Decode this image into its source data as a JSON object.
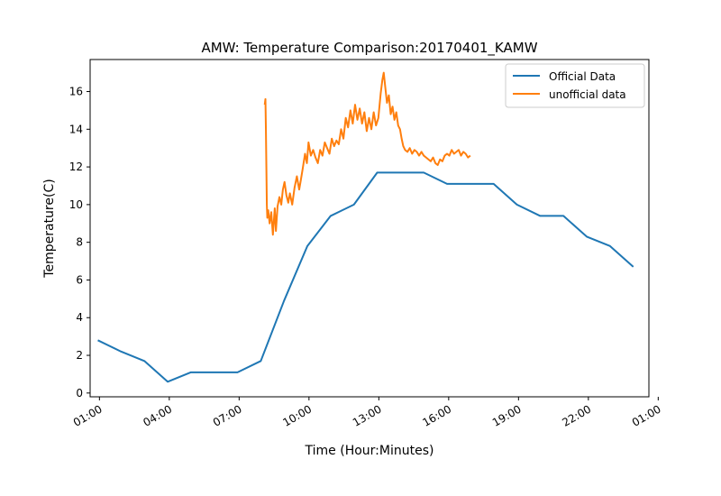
{
  "chart_data": {
    "type": "line",
    "title": "AMW: Temperature Comparison:20170401_KAMW",
    "xlabel": "Time (Hour:Minutes)",
    "ylabel": "Temperature(C)",
    "x_unit": "hours since 00:00",
    "xlim": [
      0.57,
      24.57
    ],
    "ylim": [
      -0.2,
      17.7
    ],
    "x_ticks": [
      {
        "x": 0.97,
        "label": "01:00"
      },
      {
        "x": 3.97,
        "label": "04:00"
      },
      {
        "x": 6.97,
        "label": "07:00"
      },
      {
        "x": 9.97,
        "label": "10:00"
      },
      {
        "x": 12.97,
        "label": "13:00"
      },
      {
        "x": 15.97,
        "label": "16:00"
      },
      {
        "x": 18.97,
        "label": "19:00"
      },
      {
        "x": 21.97,
        "label": "22:00"
      },
      {
        "x": 24.97,
        "label": "01:00"
      }
    ],
    "y_ticks": [
      0,
      2,
      4,
      6,
      8,
      10,
      12,
      14,
      16
    ],
    "legend_position": "top-right",
    "series": [
      {
        "name": "Official Data",
        "color": "#1f77b4",
        "points": [
          [
            0.9,
            2.8
          ],
          [
            1.9,
            2.2
          ],
          [
            2.9,
            1.7
          ],
          [
            3.9,
            0.6
          ],
          [
            4.9,
            1.1
          ],
          [
            5.9,
            1.1
          ],
          [
            6.9,
            1.1
          ],
          [
            7.9,
            1.7
          ],
          [
            8.9,
            4.9
          ],
          [
            9.9,
            7.8
          ],
          [
            10.9,
            9.4
          ],
          [
            11.9,
            10.0
          ],
          [
            12.9,
            11.7
          ],
          [
            13.9,
            11.7
          ],
          [
            14.9,
            11.7
          ],
          [
            15.9,
            11.1
          ],
          [
            16.9,
            11.1
          ],
          [
            17.9,
            11.1
          ],
          [
            18.9,
            10.0
          ],
          [
            19.9,
            9.4
          ],
          [
            20.9,
            9.4
          ],
          [
            21.9,
            8.3
          ],
          [
            22.9,
            7.8
          ],
          [
            23.9,
            6.7
          ]
        ]
      },
      {
        "name": "unofficial data",
        "color": "#ff7f0e",
        "points": [
          [
            8.07,
            15.3
          ],
          [
            8.1,
            15.6
          ],
          [
            8.12,
            14.0
          ],
          [
            8.14,
            12.0
          ],
          [
            8.16,
            10.0
          ],
          [
            8.18,
            9.3
          ],
          [
            8.22,
            9.7
          ],
          [
            8.28,
            9.0
          ],
          [
            8.35,
            9.6
          ],
          [
            8.42,
            8.4
          ],
          [
            8.5,
            9.8
          ],
          [
            8.55,
            8.6
          ],
          [
            8.62,
            9.9
          ],
          [
            8.7,
            10.4
          ],
          [
            8.78,
            10.0
          ],
          [
            8.85,
            10.8
          ],
          [
            8.92,
            11.2
          ],
          [
            9.0,
            10.5
          ],
          [
            9.08,
            10.1
          ],
          [
            9.15,
            10.6
          ],
          [
            9.25,
            10.0
          ],
          [
            9.35,
            10.9
          ],
          [
            9.45,
            11.5
          ],
          [
            9.55,
            10.8
          ],
          [
            9.62,
            11.3
          ],
          [
            9.7,
            11.9
          ],
          [
            9.8,
            12.7
          ],
          [
            9.88,
            12.2
          ],
          [
            9.95,
            13.3
          ],
          [
            10.05,
            12.6
          ],
          [
            10.15,
            12.9
          ],
          [
            10.25,
            12.5
          ],
          [
            10.35,
            12.2
          ],
          [
            10.45,
            12.9
          ],
          [
            10.55,
            12.6
          ],
          [
            10.65,
            13.3
          ],
          [
            10.75,
            13.0
          ],
          [
            10.85,
            12.7
          ],
          [
            10.95,
            13.5
          ],
          [
            11.05,
            13.1
          ],
          [
            11.15,
            13.4
          ],
          [
            11.25,
            13.2
          ],
          [
            11.35,
            14.0
          ],
          [
            11.45,
            13.5
          ],
          [
            11.55,
            14.6
          ],
          [
            11.65,
            14.1
          ],
          [
            11.75,
            15.0
          ],
          [
            11.85,
            14.3
          ],
          [
            11.95,
            15.3
          ],
          [
            12.05,
            14.5
          ],
          [
            12.15,
            15.1
          ],
          [
            12.25,
            14.3
          ],
          [
            12.35,
            14.9
          ],
          [
            12.45,
            13.9
          ],
          [
            12.55,
            14.6
          ],
          [
            12.65,
            14.0
          ],
          [
            12.75,
            14.9
          ],
          [
            12.85,
            14.2
          ],
          [
            12.95,
            14.6
          ],
          [
            13.05,
            15.9
          ],
          [
            13.12,
            16.6
          ],
          [
            13.18,
            17.0
          ],
          [
            13.25,
            16.2
          ],
          [
            13.32,
            15.4
          ],
          [
            13.4,
            15.8
          ],
          [
            13.48,
            14.8
          ],
          [
            13.56,
            15.2
          ],
          [
            13.64,
            14.5
          ],
          [
            13.72,
            14.9
          ],
          [
            13.8,
            14.2
          ],
          [
            13.88,
            14.0
          ],
          [
            13.95,
            13.5
          ],
          [
            14.02,
            13.1
          ],
          [
            14.1,
            12.9
          ],
          [
            14.2,
            12.8
          ],
          [
            14.3,
            13.0
          ],
          [
            14.4,
            12.7
          ],
          [
            14.5,
            12.9
          ],
          [
            14.6,
            12.8
          ],
          [
            14.7,
            12.6
          ],
          [
            14.8,
            12.8
          ],
          [
            14.9,
            12.6
          ],
          [
            15.0,
            12.5
          ],
          [
            15.1,
            12.4
          ],
          [
            15.2,
            12.3
          ],
          [
            15.3,
            12.5
          ],
          [
            15.4,
            12.2
          ],
          [
            15.5,
            12.1
          ],
          [
            15.6,
            12.4
          ],
          [
            15.7,
            12.3
          ],
          [
            15.8,
            12.6
          ],
          [
            15.9,
            12.7
          ],
          [
            16.0,
            12.6
          ],
          [
            16.1,
            12.9
          ],
          [
            16.2,
            12.7
          ],
          [
            16.3,
            12.8
          ],
          [
            16.4,
            12.9
          ],
          [
            16.5,
            12.6
          ],
          [
            16.6,
            12.8
          ],
          [
            16.7,
            12.7
          ],
          [
            16.8,
            12.5
          ],
          [
            16.9,
            12.6
          ]
        ]
      }
    ]
  }
}
